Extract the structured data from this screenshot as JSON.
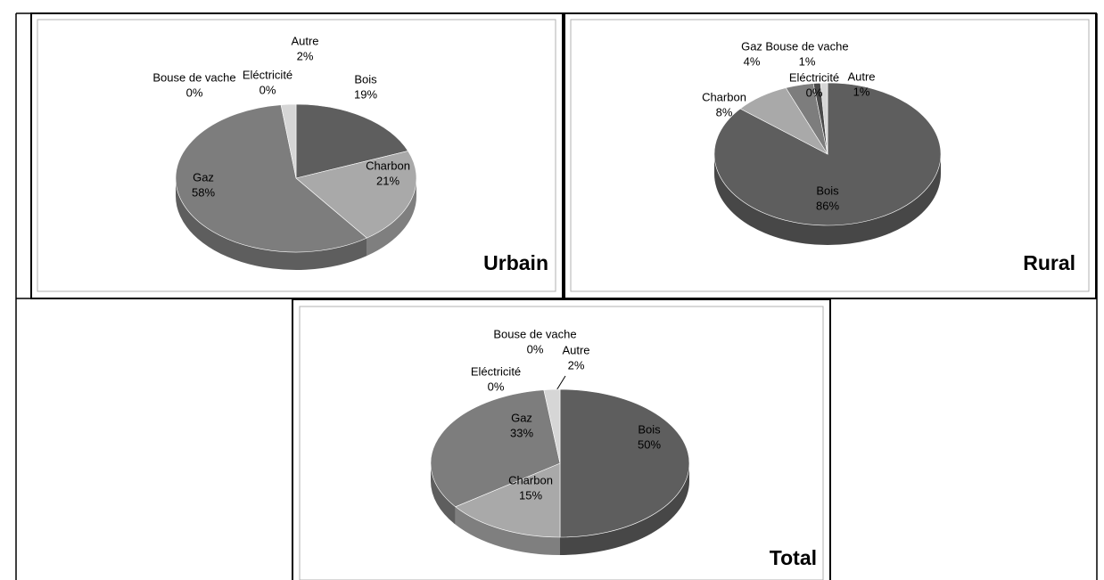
{
  "chart_data": [
    {
      "type": "pie",
      "title": "Urbain",
      "categories": [
        "Bois",
        "Charbon",
        "Gaz",
        "Bouse de vache",
        "Eléctricité",
        "Autre"
      ],
      "values": [
        19,
        21,
        58,
        0,
        0,
        2
      ],
      "value_labels": [
        "19%",
        "21%",
        "58%",
        "0%",
        "0%",
        "2%"
      ],
      "colors": [
        "#5e5e5e",
        "#a9a9a9",
        "#7d7d7d",
        "#4a4a4a",
        "#8c8c8c",
        "#d6d6d6"
      ]
    },
    {
      "type": "pie",
      "title": "Rural",
      "categories": [
        "Bois",
        "Charbon",
        "Gaz",
        "Bouse de vache",
        "Eléctricité",
        "Autre"
      ],
      "values": [
        86,
        8,
        4,
        1,
        0,
        1
      ],
      "value_labels": [
        "86%",
        "8%",
        "4%",
        "1%",
        "0%",
        "1%"
      ],
      "colors": [
        "#5e5e5e",
        "#a9a9a9",
        "#7d7d7d",
        "#4a4a4a",
        "#8c8c8c",
        "#d6d6d6"
      ]
    },
    {
      "type": "pie",
      "title": "Total",
      "categories": [
        "Bois",
        "Charbon",
        "Gaz",
        "Bouse de vache",
        "Eléctricité",
        "Autre"
      ],
      "values": [
        50,
        15,
        33,
        0,
        0,
        2
      ],
      "value_labels": [
        "50%",
        "15%",
        "33%",
        "0%",
        "0%",
        "2%"
      ],
      "colors": [
        "#5e5e5e",
        "#a9a9a9",
        "#7d7d7d",
        "#4a4a4a",
        "#8c8c8c",
        "#d6d6d6"
      ]
    }
  ]
}
